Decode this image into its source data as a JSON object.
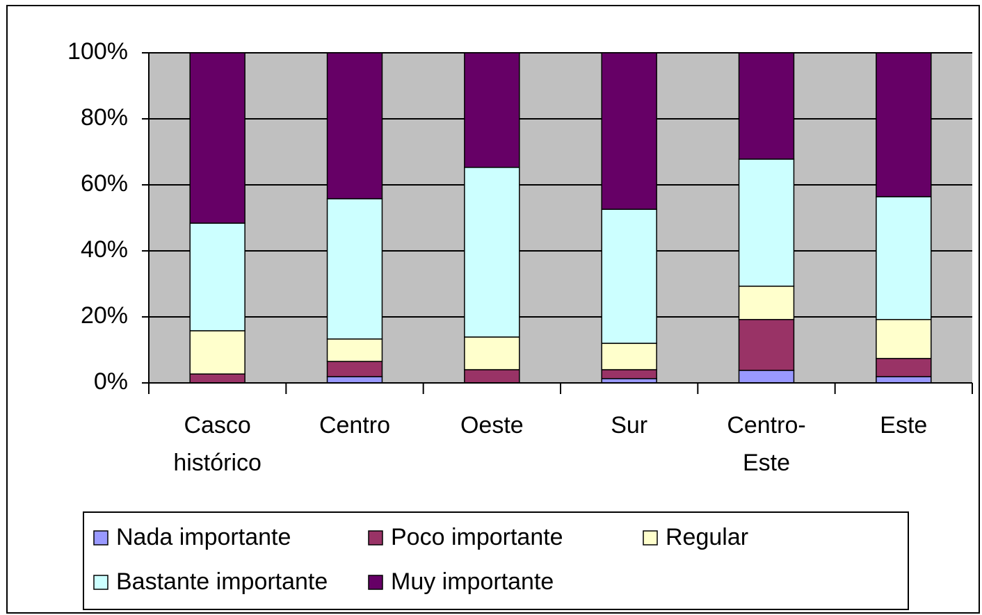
{
  "chart_data": {
    "type": "stacked_bar",
    "categories": [
      "Casco histórico",
      "Centro",
      "Oeste",
      "Sur",
      "Centro-Este",
      "Este"
    ],
    "series": [
      {
        "name": "Nada importante",
        "color": "#9999ff",
        "values": [
          0,
          1.9,
          0,
          1.3,
          3.8,
          1.9
        ]
      },
      {
        "name": "Poco importante",
        "color": "#993366",
        "values": [
          2.7,
          4.6,
          4.0,
          2.7,
          15.4,
          5.5
        ]
      },
      {
        "name": "Regular",
        "color": "#ffffcc",
        "values": [
          13.1,
          6.8,
          9.9,
          8.0,
          10.1,
          11.8
        ]
      },
      {
        "name": "Bastante importante",
        "color": "#ccffff",
        "values": [
          32.6,
          42.5,
          51.4,
          40.6,
          38.5,
          37.2
        ]
      },
      {
        "name": "Muy importante",
        "color": "#660066",
        "values": [
          51.6,
          44.2,
          34.7,
          47.4,
          32.2,
          43.6
        ]
      }
    ],
    "ylim": [
      0,
      100
    ],
    "yticks": [
      {
        "value": 0,
        "label": "0%"
      },
      {
        "value": 20,
        "label": "20%"
      },
      {
        "value": 40,
        "label": "40%"
      },
      {
        "value": 60,
        "label": "60%"
      },
      {
        "value": 80,
        "label": "80%"
      },
      {
        "value": 100,
        "label": "100%"
      }
    ],
    "grid": true,
    "legend": "bottom",
    "plot_background": "#c0c0c0"
  }
}
